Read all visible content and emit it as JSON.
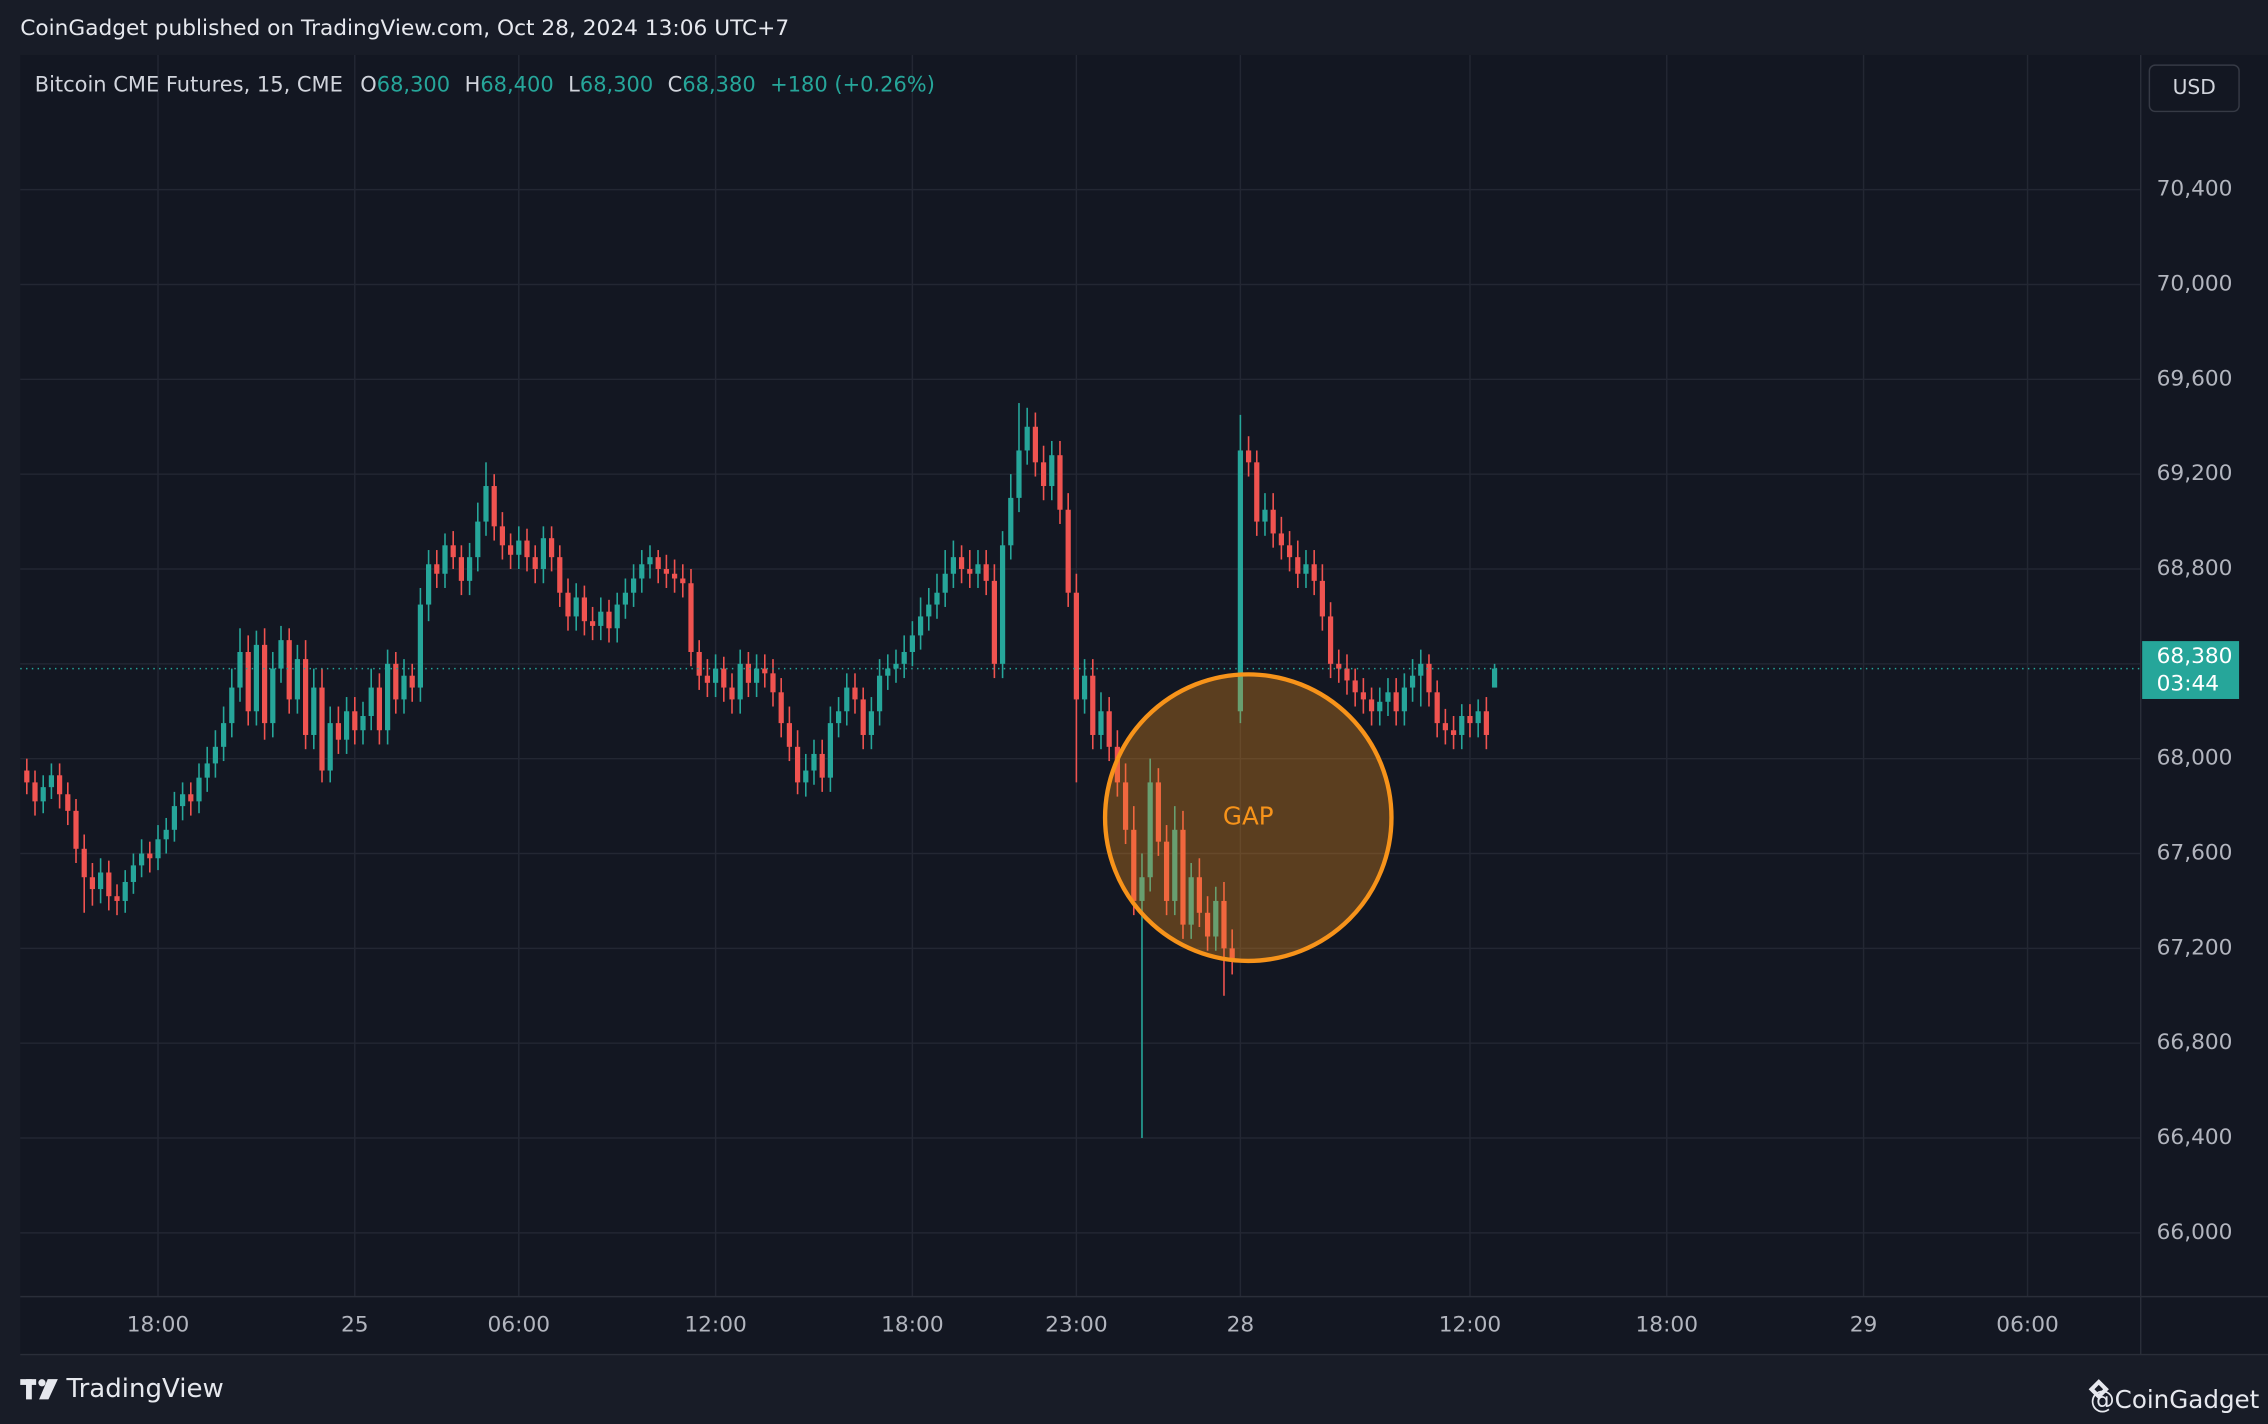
{
  "header": {
    "publisher": "CoinGadget published on TradingView.com, Oct 28, 2024 13:06 UTC+7"
  },
  "footer": {
    "brand": "TradingView",
    "author": "@CoinGadget"
  },
  "chart_data": {
    "type": "candlestick",
    "legend": {
      "symbol": "Bitcoin CME Futures, 15, CME",
      "items": [
        {
          "key": "O",
          "value": "68,300"
        },
        {
          "key": "H",
          "value": "68,400"
        },
        {
          "key": "L",
          "value": "68,300"
        },
        {
          "key": "C",
          "value": "68,380"
        }
      ],
      "change": "+180 (+0.26%)"
    },
    "currency": "USD",
    "up_color": "#26a69a",
    "down_color": "#ef5350",
    "grid": true,
    "last_price": {
      "value": 68380,
      "label": "68,380"
    },
    "countdown": "03:44",
    "annotation": {
      "text": "GAP",
      "color": "#f7931a"
    },
    "xlim": [
      -0.8,
      257.8
    ],
    "xticks": [
      {
        "value": 16,
        "label": "18:00"
      },
      {
        "value": 40,
        "label": "25"
      },
      {
        "value": 60,
        "label": "06:00"
      },
      {
        "value": 84,
        "label": "12:00"
      },
      {
        "value": 108,
        "label": "18:00"
      },
      {
        "value": 128,
        "label": "23:00"
      },
      {
        "value": 148,
        "label": "28"
      },
      {
        "value": 176,
        "label": "12:00"
      },
      {
        "value": 200,
        "label": "18:00"
      },
      {
        "value": 224,
        "label": "29"
      },
      {
        "value": 244,
        "label": "06:00"
      }
    ],
    "ylim": [
      65731,
      70968
    ],
    "yticks": [
      {
        "value": 66000,
        "label": "66,000"
      },
      {
        "value": 66400,
        "label": "66,400"
      },
      {
        "value": 66800,
        "label": "66,800"
      },
      {
        "value": 67200,
        "label": "67,200"
      },
      {
        "value": 67600,
        "label": "67,600"
      },
      {
        "value": 68000,
        "label": "68,000"
      },
      {
        "value": 68400,
        "label": "68,400"
      },
      {
        "value": 68800,
        "label": "68,800"
      },
      {
        "value": 69200,
        "label": "69,200"
      },
      {
        "value": 69600,
        "label": "69,600"
      },
      {
        "value": 70000,
        "label": "70,000"
      },
      {
        "value": 70400,
        "label": "70,400"
      }
    ],
    "open": [
      67950,
      67900,
      67820,
      67880,
      67930,
      67850,
      67780,
      67620,
      67500,
      67450,
      67520,
      67420,
      67400,
      67480,
      67550,
      67600,
      67580,
      67660,
      67700,
      67800,
      67850,
      67820,
      67920,
      67980,
      68050,
      68150,
      68300,
      68450,
      68200,
      68480,
      68150,
      68380,
      68500,
      68250,
      68420,
      68100,
      68300,
      67950,
      68150,
      68080,
      68200,
      68120,
      68180,
      68300,
      68120,
      68400,
      68250,
      68350,
      68300,
      68650,
      68820,
      68780,
      68900,
      68850,
      68750,
      68850,
      69000,
      69150,
      68980,
      68900,
      68860,
      68920,
      68850,
      68800,
      68930,
      68850,
      68700,
      68600,
      68680,
      68580,
      68560,
      68620,
      68550,
      68650,
      68700,
      68760,
      68820,
      68850,
      68800,
      68780,
      68760,
      68740,
      68450,
      68350,
      68320,
      68380,
      68300,
      68250,
      68400,
      68320,
      68380,
      68360,
      68280,
      68150,
      68050,
      67900,
      67950,
      68020,
      67920,
      68150,
      68200,
      68300,
      68250,
      68100,
      68200,
      68350,
      68380,
      68400,
      68450,
      68520,
      68600,
      68650,
      68700,
      68780,
      68850,
      68800,
      68780,
      68820,
      68750,
      68400,
      68900,
      69100,
      69300,
      69400,
      69250,
      69150,
      69280,
      69050,
      68700,
      68250,
      68350,
      68100,
      68200,
      68050,
      67900,
      67700,
      67400,
      67500,
      67900,
      67650,
      67400,
      67700,
      67300,
      67500,
      67350,
      67250,
      67400,
      67200,
      68200,
      69300,
      69250,
      69000,
      69050,
      68950,
      68900,
      68850,
      68780,
      68820,
      68750,
      68600,
      68400,
      68380,
      68330,
      68280,
      68250,
      68200,
      68240,
      68280,
      68200,
      68300,
      68350,
      68400,
      68280,
      68150,
      68120,
      68100,
      68180,
      68150,
      68200,
      68300
    ],
    "high": [
      68000,
      67950,
      67930,
      67980,
      67980,
      67900,
      67830,
      67680,
      67560,
      67580,
      67570,
      67470,
      67530,
      67600,
      67660,
      67650,
      67720,
      67750,
      67860,
      67900,
      67900,
      67980,
      68050,
      68120,
      68220,
      68380,
      68550,
      68520,
      68540,
      68550,
      68450,
      68560,
      68550,
      68480,
      68500,
      68380,
      68380,
      68220,
      68220,
      68260,
      68260,
      68240,
      68380,
      68360,
      68460,
      68450,
      68420,
      68400,
      68720,
      68880,
      68880,
      68950,
      68960,
      68900,
      68910,
      69080,
      69250,
      69200,
      69040,
      68950,
      68980,
      68970,
      68900,
      68980,
      68980,
      68900,
      68760,
      68740,
      68730,
      68640,
      68680,
      68670,
      68700,
      68760,
      68820,
      68880,
      68900,
      68880,
      68860,
      68840,
      68820,
      68800,
      68500,
      68420,
      68440,
      68430,
      68360,
      68460,
      68450,
      68440,
      68440,
      68420,
      68340,
      68220,
      68120,
      68020,
      68080,
      68080,
      68220,
      68260,
      68360,
      68360,
      68300,
      68260,
      68420,
      68440,
      68460,
      68520,
      68580,
      68680,
      68720,
      68780,
      68880,
      68920,
      68900,
      68880,
      68880,
      68880,
      68820,
      68960,
      69200,
      69500,
      69480,
      69460,
      69320,
      69340,
      69340,
      69120,
      68780,
      68420,
      68420,
      68280,
      68260,
      68120,
      67980,
      67800,
      67600,
      68000,
      67960,
      67720,
      67800,
      67780,
      67560,
      67580,
      67420,
      67460,
      67480,
      67280,
      69450,
      69360,
      69300,
      69120,
      69120,
      69020,
      68960,
      68920,
      68880,
      68880,
      68820,
      68660,
      68460,
      68440,
      68380,
      68340,
      68300,
      68300,
      68340,
      68340,
      68360,
      68420,
      68460,
      68440,
      68330,
      68210,
      68180,
      68230,
      68230,
      68250,
      68260,
      68400
    ],
    "low": [
      67850,
      67760,
      67770,
      67830,
      67790,
      67720,
      67560,
      67350,
      67380,
      67390,
      67360,
      67340,
      67350,
      67430,
      67500,
      67520,
      67530,
      67600,
      67650,
      67740,
      67760,
      67770,
      67860,
      67920,
      67990,
      68090,
      68240,
      68140,
      68140,
      68080,
      68090,
      68320,
      68190,
      68190,
      68040,
      68040,
      67900,
      67900,
      68020,
      68020,
      68060,
      68060,
      68120,
      68060,
      68060,
      68190,
      68190,
      68240,
      68240,
      68580,
      68720,
      68720,
      68800,
      68690,
      68690,
      68790,
      68940,
      68920,
      68840,
      68800,
      68800,
      68790,
      68740,
      68740,
      68790,
      68640,
      68540,
      68540,
      68520,
      68500,
      68500,
      68490,
      68490,
      68590,
      68640,
      68700,
      68760,
      68740,
      68720,
      68700,
      68680,
      68390,
      68290,
      68260,
      68260,
      68240,
      68190,
      68190,
      68260,
      68260,
      68300,
      68220,
      68090,
      67990,
      67850,
      67840,
      67890,
      67860,
      67860,
      68090,
      68140,
      68190,
      68040,
      68040,
      68140,
      68290,
      68320,
      68340,
      68390,
      68460,
      68540,
      68590,
      68640,
      68720,
      68740,
      68720,
      68720,
      68690,
      68340,
      68340,
      68840,
      69040,
      69240,
      69190,
      69090,
      69090,
      68990,
      68640,
      67900,
      68190,
      68040,
      68040,
      67990,
      67840,
      67640,
      67340,
      66400,
      67440,
      67590,
      67340,
      67340,
      67240,
      67240,
      67290,
      67190,
      67190,
      67000,
      67090,
      68150,
      69190,
      68940,
      68940,
      68890,
      68840,
      68790,
      68720,
      68720,
      68690,
      68540,
      68340,
      68320,
      68270,
      68220,
      68190,
      68140,
      68140,
      68180,
      68140,
      68140,
      68240,
      68220,
      68220,
      68090,
      68060,
      68040,
      68040,
      68090,
      68090,
      68040,
      68300
    ],
    "close": [
      67900,
      67820,
      67880,
      67930,
      67850,
      67780,
      67620,
      67500,
      67450,
      67520,
      67420,
      67400,
      67480,
      67550,
      67600,
      67580,
      67660,
      67700,
      67800,
      67850,
      67820,
      67920,
      67980,
      68050,
      68150,
      68300,
      68450,
      68200,
      68480,
      68150,
      68380,
      68500,
      68250,
      68420,
      68100,
      68300,
      67950,
      68150,
      68080,
      68200,
      68120,
      68180,
      68300,
      68120,
      68400,
      68250,
      68350,
      68300,
      68650,
      68820,
      68780,
      68900,
      68850,
      68750,
      68850,
      69000,
      69150,
      68980,
      68900,
      68860,
      68920,
      68850,
      68800,
      68930,
      68850,
      68700,
      68600,
      68680,
      68580,
      68560,
      68620,
      68550,
      68650,
      68700,
      68760,
      68820,
      68850,
      68800,
      68780,
      68760,
      68740,
      68450,
      68350,
      68320,
      68380,
      68300,
      68250,
      68400,
      68320,
      68380,
      68360,
      68280,
      68150,
      68050,
      67900,
      67950,
      68020,
      67920,
      68150,
      68200,
      68300,
      68250,
      68100,
      68200,
      68350,
      68380,
      68400,
      68450,
      68520,
      68600,
      68650,
      68700,
      68780,
      68850,
      68800,
      68780,
      68820,
      68750,
      68400,
      68900,
      69100,
      69300,
      69400,
      69250,
      69150,
      69280,
      69050,
      68700,
      68250,
      68350,
      68100,
      68200,
      68050,
      67900,
      67700,
      67400,
      67500,
      67900,
      67650,
      67400,
      67700,
      67300,
      67500,
      67350,
      67250,
      67400,
      67200,
      67150,
      69300,
      69250,
      69000,
      69050,
      68950,
      68900,
      68850,
      68780,
      68820,
      68750,
      68600,
      68400,
      68380,
      68330,
      68280,
      68250,
      68200,
      68240,
      68280,
      68200,
      68300,
      68350,
      68400,
      68280,
      68150,
      68120,
      68100,
      68180,
      68150,
      68200,
      68100,
      68380
    ]
  }
}
